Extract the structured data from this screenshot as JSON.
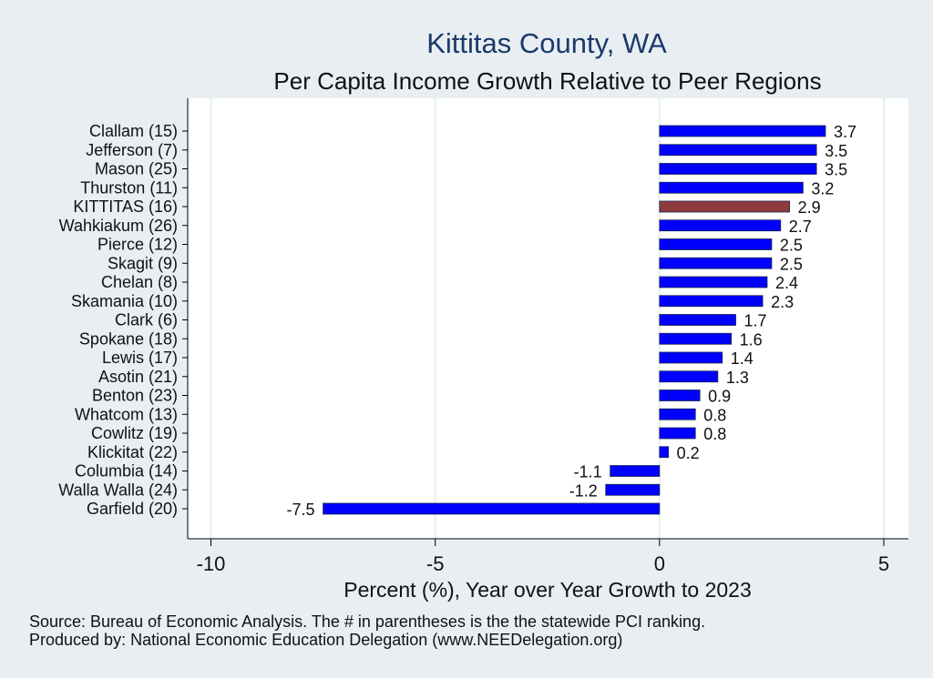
{
  "chart_data": {
    "type": "bar",
    "orientation": "horizontal",
    "title": "Kittitas County, WA",
    "subtitle": "Per Capita Income Growth Relative to Peer Regions",
    "xlabel": "Percent (%), Year over Year Growth to 2023",
    "ylabel": "",
    "xlim": [
      -10.3,
      5.5
    ],
    "xticks": [
      -10,
      -5,
      0,
      5
    ],
    "xtick_labels": [
      "-10",
      "-5",
      "0",
      "5"
    ],
    "grid": true,
    "categories": [
      "Clallam (15)",
      "Jefferson  (7)",
      "Mason (25)",
      "Thurston (11)",
      "KITTITAS (16)",
      "Wahkiakum (26)",
      "Pierce (12)",
      "Skagit  (9)",
      "Chelan  (8)",
      "Skamania (10)",
      "Clark  (6)",
      "Spokane (18)",
      "Lewis (17)",
      "Asotin (21)",
      "Benton (23)",
      "Whatcom (13)",
      "Cowlitz (19)",
      "Klickitat (22)",
      "Columbia (14)",
      "Walla Walla (24)",
      "Garfield (20)"
    ],
    "values": [
      3.7,
      3.5,
      3.5,
      3.2,
      2.9,
      2.7,
      2.5,
      2.5,
      2.4,
      2.3,
      1.7,
      1.6,
      1.4,
      1.3,
      0.9,
      0.8,
      0.8,
      0.2,
      -1.1,
      -1.2,
      -7.5
    ],
    "value_labels": [
      "3.7",
      "3.5",
      "3.5",
      "3.2",
      "2.9",
      "2.7",
      "2.5",
      "2.5",
      "2.4",
      "2.3",
      "1.7",
      "1.6",
      "1.4",
      "1.3",
      "0.9",
      "0.8",
      "0.8",
      "0.2",
      "-1.1",
      "-1.2",
      "-7.5"
    ],
    "highlight_category": "KITTITAS (16)",
    "colors": {
      "bar": "#0000ff",
      "highlight": "#8f3a3c",
      "title": "#1a3a6a",
      "background": "#e9eef2",
      "plot_background": "#ffffff",
      "grid": "#e6eff2"
    },
    "source_lines": [
      "Source: Bureau of Economic Analysis. The # in parentheses is the the statewide PCI ranking.",
      "Produced by: National Economic Education Delegation (www.NEEDelegation.org)"
    ]
  }
}
